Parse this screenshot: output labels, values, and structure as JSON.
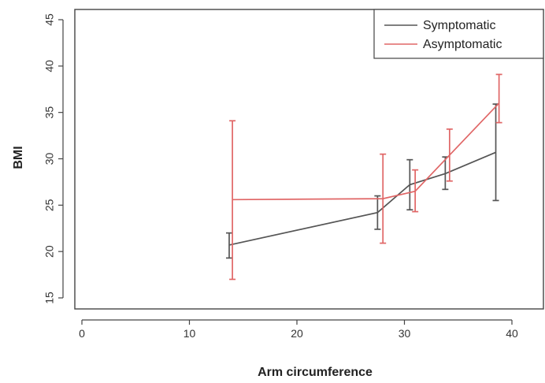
{
  "chart_data": {
    "type": "line",
    "title": "",
    "xlabel": "Arm circumference",
    "ylabel": "BMI",
    "xlim": [
      0,
      42
    ],
    "ylim": [
      14,
      46
    ],
    "x_ticks": [
      0,
      10,
      20,
      30,
      40
    ],
    "y_ticks": [
      15,
      20,
      25,
      30,
      35,
      40,
      45
    ],
    "grid": false,
    "legend_position": "top-right",
    "series": [
      {
        "name": "Symptomatic",
        "color": "#555555",
        "points": [
          {
            "x": 13.7,
            "y": 20.7,
            "ylow": 19.3,
            "yhigh": 22.0
          },
          {
            "x": 27.5,
            "y": 24.2,
            "ylow": 22.4,
            "yhigh": 26.0
          },
          {
            "x": 30.5,
            "y": 27.2,
            "ylow": 24.5,
            "yhigh": 29.9
          },
          {
            "x": 33.8,
            "y": 28.4,
            "ylow": 26.7,
            "yhigh": 30.2
          },
          {
            "x": 38.5,
            "y": 30.7,
            "ylow": 25.5,
            "yhigh": 35.9
          }
        ]
      },
      {
        "name": "Asymptomatic",
        "color": "#e06666",
        "points": [
          {
            "x": 14.0,
            "y": 25.6,
            "ylow": 17.0,
            "yhigh": 34.1
          },
          {
            "x": 28.0,
            "y": 25.7,
            "ylow": 20.9,
            "yhigh": 30.5
          },
          {
            "x": 31.0,
            "y": 26.5,
            "ylow": 24.3,
            "yhigh": 28.8
          },
          {
            "x": 34.2,
            "y": 30.4,
            "ylow": 27.6,
            "yhigh": 33.2
          },
          {
            "x": 38.8,
            "y": 36.0,
            "ylow": 33.9,
            "yhigh": 39.1
          }
        ]
      }
    ]
  }
}
